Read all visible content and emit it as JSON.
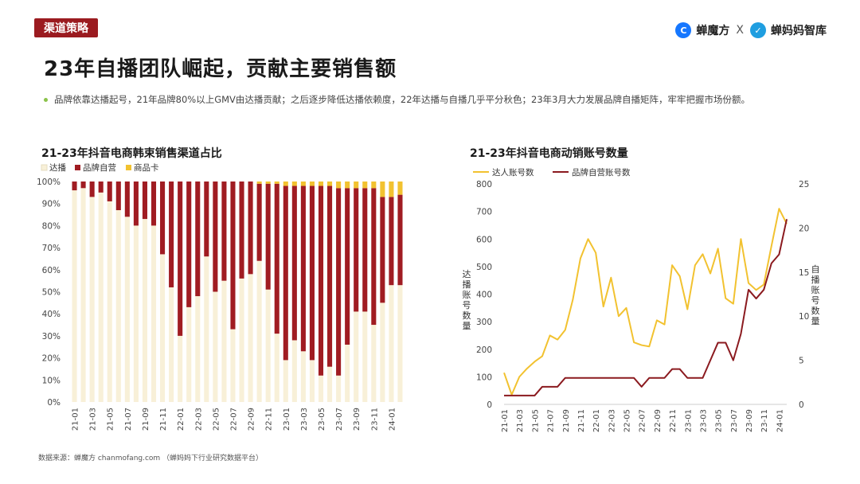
{
  "header": {
    "tag": "渠道策略",
    "brand_left": "蝉魔方",
    "brand_sep": "X",
    "brand_right": "蝉妈妈智库",
    "title": "23年自播团队崛起，贡献主要销售额",
    "subtitle": "品牌依靠达播起号，21年品牌80%以上GMV由达播贡献；之后逐步降低达播依赖度，22年达播与自播几乎平分秋色；23年3月大力发展品牌自播矩阵，牢牢把握市场份额。"
  },
  "footer": {
    "source": "数据来源：蝉魔方 chanmofang.com （蝉妈妈下行业研究数据平台）"
  },
  "colors": {
    "accent": "#9b1b20",
    "daren": "#f8f0d8",
    "brand_self": "#a01c22",
    "goods_card": "#f2c230",
    "line_yellow": "#f2c230",
    "line_red": "#8b1a1f"
  },
  "chart_data": [
    {
      "type": "bar",
      "stacked": true,
      "title": "21-23年抖音电商韩束销售渠道占比",
      "legend_position": "top-left",
      "series_names": [
        "达播",
        "品牌自营",
        "商品卡"
      ],
      "x_tick_labels": [
        "21-01",
        "21-03",
        "21-05",
        "21-07",
        "21-09",
        "21-11",
        "22-01",
        "22-03",
        "22-05",
        "22-07",
        "22-09",
        "22-11",
        "23-01",
        "23-03",
        "23-05",
        "23-07",
        "23-09",
        "23-11",
        "24-01"
      ],
      "y_tick_labels": [
        "0%",
        "10%",
        "20%",
        "30%",
        "40%",
        "50%",
        "60%",
        "70%",
        "80%",
        "90%",
        "100%"
      ],
      "ylim": [
        0,
        100
      ],
      "categories": [
        "21-01",
        "21-02",
        "21-03",
        "21-04",
        "21-05",
        "21-06",
        "21-07",
        "21-08",
        "21-09",
        "21-10",
        "21-11",
        "21-12",
        "22-01",
        "22-02",
        "22-03",
        "22-04",
        "22-05",
        "22-06",
        "22-07",
        "22-08",
        "22-09",
        "22-10",
        "22-11",
        "22-12",
        "23-01",
        "23-02",
        "23-03",
        "23-04",
        "23-05",
        "23-06",
        "23-07",
        "23-08",
        "23-09",
        "23-10",
        "23-11",
        "23-12",
        "24-01",
        "24-02"
      ],
      "series": [
        {
          "name": "达播",
          "values": [
            96,
            97,
            93,
            95,
            91,
            87,
            84,
            80,
            83,
            80,
            67,
            52,
            30,
            43,
            48,
            66,
            50,
            55,
            33,
            56,
            58,
            64,
            51,
            31,
            19,
            28,
            23,
            19,
            12,
            16,
            12,
            26,
            41,
            41,
            35,
            45,
            53,
            53
          ]
        },
        {
          "name": "品牌自营",
          "values": [
            4,
            3,
            7,
            5,
            9,
            13,
            16,
            20,
            17,
            20,
            33,
            48,
            70,
            57,
            52,
            34,
            50,
            45,
            67,
            44,
            42,
            35,
            48,
            68,
            79,
            70,
            75,
            79,
            86,
            82,
            85,
            71,
            56,
            56,
            62,
            48,
            40,
            41
          ]
        },
        {
          "name": "商品卡",
          "values": [
            0,
            0,
            0,
            0,
            0,
            0,
            0,
            0,
            0,
            0,
            0,
            0,
            0,
            0,
            0,
            0,
            0,
            0,
            0,
            0,
            0,
            1,
            1,
            1,
            2,
            2,
            2,
            2,
            2,
            2,
            3,
            3,
            3,
            3,
            3,
            7,
            7,
            6
          ]
        }
      ]
    },
    {
      "type": "line",
      "title": "21-23年抖音电商动销账号数量",
      "legend_position": "top-left",
      "ylabel": "达播账号数量",
      "y2label": "自播账号数量",
      "ylim": [
        0,
        800
      ],
      "y2lim": [
        0,
        25
      ],
      "y_tick_labels": [
        "0",
        "100",
        "200",
        "300",
        "400",
        "500",
        "600",
        "700",
        "800"
      ],
      "y2_tick_labels": [
        "0",
        "5",
        "10",
        "15",
        "20",
        "25"
      ],
      "x_tick_labels": [
        "21-01",
        "21-03",
        "21-05",
        "21-07",
        "21-09",
        "21-11",
        "22-01",
        "22-03",
        "22-05",
        "22-07",
        "22-09",
        "22-11",
        "23-01",
        "23-03",
        "23-05",
        "23-07",
        "23-09",
        "23-11",
        "24-01"
      ],
      "x": [
        "21-01",
        "21-02",
        "21-03",
        "21-04",
        "21-05",
        "21-06",
        "21-07",
        "21-08",
        "21-09",
        "21-10",
        "21-11",
        "21-12",
        "22-01",
        "22-02",
        "22-03",
        "22-04",
        "22-05",
        "22-06",
        "22-07",
        "22-08",
        "22-09",
        "22-10",
        "22-11",
        "22-12",
        "23-01",
        "23-02",
        "23-03",
        "23-04",
        "23-05",
        "23-06",
        "23-07",
        "23-08",
        "23-09",
        "23-10",
        "23-11",
        "23-12",
        "24-01",
        "24-02"
      ],
      "series": [
        {
          "name": "达人账号数",
          "axis": "left",
          "values": [
            115,
            35,
            100,
            130,
            155,
            175,
            250,
            235,
            270,
            380,
            530,
            600,
            550,
            355,
            460,
            320,
            350,
            225,
            215,
            210,
            305,
            290,
            505,
            465,
            345,
            505,
            545,
            475,
            565,
            385,
            365,
            600,
            440,
            415,
            435,
            575,
            710,
            655
          ]
        },
        {
          "name": "品牌自营账号数",
          "axis": "right",
          "values": [
            1,
            1,
            1,
            1,
            1,
            2,
            2,
            2,
            3,
            3,
            3,
            3,
            3,
            3,
            3,
            3,
            3,
            3,
            2,
            3,
            3,
            3,
            4,
            4,
            3,
            3,
            3,
            5,
            7,
            7,
            5,
            8,
            13,
            12,
            13,
            16,
            17,
            21
          ]
        }
      ]
    }
  ]
}
